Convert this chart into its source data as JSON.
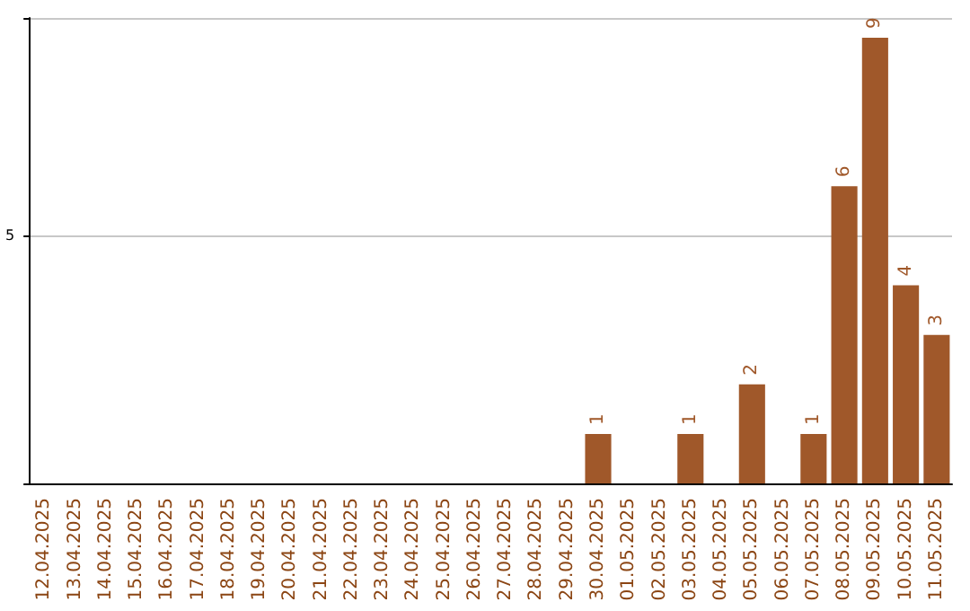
{
  "chart_data": {
    "type": "bar",
    "categories": [
      "12.04.2025",
      "13.04.2025",
      "14.04.2025",
      "15.04.2025",
      "16.04.2025",
      "17.04.2025",
      "18.04.2025",
      "19.04.2025",
      "20.04.2025",
      "21.04.2025",
      "22.04.2025",
      "23.04.2025",
      "24.04.2025",
      "25.04.2025",
      "26.04.2025",
      "27.04.2025",
      "28.04.2025",
      "29.04.2025",
      "30.04.2025",
      "01.05.2025",
      "02.05.2025",
      "03.05.2025",
      "04.05.2025",
      "05.05.2025",
      "06.05.2025",
      "07.05.2025",
      "08.05.2025",
      "09.05.2025",
      "10.05.2025",
      "11.05.2025"
    ],
    "values": [
      null,
      null,
      null,
      null,
      null,
      null,
      null,
      null,
      null,
      null,
      null,
      null,
      null,
      null,
      null,
      null,
      null,
      null,
      1,
      null,
      null,
      1,
      null,
      2,
      null,
      1,
      6,
      9,
      4,
      3
    ],
    "color": "#a0582a",
    "ylim": [
      0,
      9.4
    ],
    "yticks": [
      5
    ],
    "grid": "y",
    "data_labels": true
  }
}
